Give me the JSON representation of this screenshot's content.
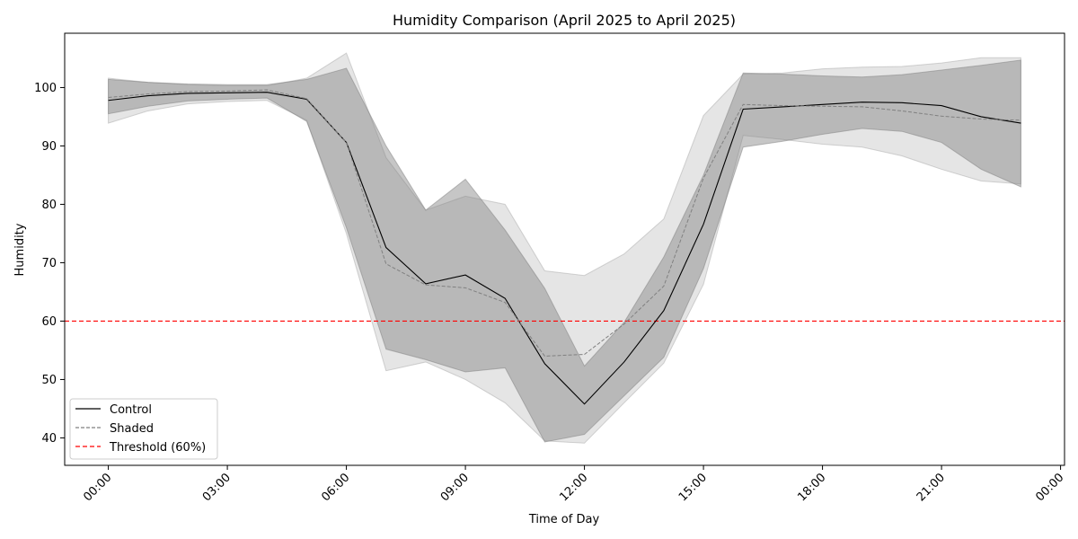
{
  "chart_data": {
    "type": "line",
    "title": "Humidity Comparison (April 2025 to April 2025)",
    "xlabel": "Time of Day",
    "ylabel": "Humidity",
    "x": [
      0,
      1,
      2,
      3,
      4,
      5,
      6,
      7,
      8,
      9,
      10,
      11,
      12,
      13,
      14,
      15,
      16,
      17,
      18,
      19,
      20,
      21,
      22,
      23
    ],
    "xlim": [
      -1.1,
      24.1
    ],
    "ylim": [
      35.3,
      109.3
    ],
    "x_ticks": [
      0,
      3,
      6,
      9,
      12,
      15,
      18,
      21,
      24
    ],
    "x_tick_labels": [
      "00:00",
      "03:00",
      "06:00",
      "09:00",
      "12:00",
      "15:00",
      "18:00",
      "21:00",
      "00:00"
    ],
    "y_ticks": [
      40,
      50,
      60,
      70,
      80,
      90,
      100
    ],
    "y_tick_labels": [
      "40",
      "50",
      "60",
      "70",
      "80",
      "90",
      "100"
    ],
    "grid": false,
    "legend_position": "lower-left",
    "series": [
      {
        "name": "Control",
        "color": "#000000",
        "style": "solid",
        "values": [
          97.8,
          98.6,
          99.0,
          99.1,
          99.2,
          98.0,
          90.6,
          72.6,
          66.4,
          67.9,
          63.9,
          52.7,
          45.8,
          53.0,
          61.8,
          76.6,
          96.3,
          96.7,
          97.1,
          97.5,
          97.4,
          96.9,
          95.0,
          93.9
        ],
        "band_low": [
          95.5,
          96.8,
          97.7,
          98.0,
          98.2,
          94.2,
          76.0,
          55.2,
          53.4,
          51.3,
          52.0,
          39.3,
          40.6,
          47.2,
          53.8,
          69.0,
          89.8,
          90.8,
          92.0,
          93.0,
          92.5,
          90.6,
          86.0,
          83.0
        ],
        "band_high": [
          101.4,
          100.9,
          100.6,
          100.5,
          100.5,
          101.4,
          103.3,
          90.0,
          79.0,
          84.3,
          75.6,
          65.6,
          52.3,
          59.8,
          71.0,
          85.0,
          102.5,
          102.3,
          102.0,
          101.8,
          102.2,
          103.0,
          103.8,
          104.7
        ]
      },
      {
        "name": "Shaded",
        "color": "#808080",
        "style": "dashed",
        "values": [
          98.3,
          98.9,
          99.3,
          99.4,
          99.6,
          98.1,
          90.6,
          69.8,
          66.2,
          65.7,
          63.2,
          54.0,
          54.3,
          59.5,
          66.0,
          84.5,
          97.1,
          96.9,
          96.8,
          96.7,
          96.0,
          95.1,
          94.6,
          94.4
        ],
        "band_low": [
          93.9,
          96.0,
          97.2,
          97.6,
          97.8,
          94.4,
          75.0,
          51.5,
          53.0,
          50.0,
          46.0,
          39.5,
          39.1,
          46.0,
          52.8,
          66.3,
          91.8,
          91.1,
          90.3,
          89.8,
          88.3,
          86.0,
          84.0,
          83.5
        ],
        "band_high": [
          101.6,
          100.9,
          100.5,
          100.3,
          100.3,
          101.6,
          105.9,
          88.0,
          79.0,
          81.4,
          80.0,
          68.6,
          67.8,
          71.5,
          77.5,
          95.2,
          102.3,
          102.5,
          103.2,
          103.5,
          103.6,
          104.2,
          105.1,
          105.1
        ]
      }
    ],
    "reference_lines": [
      {
        "name": "Threshold (60%)",
        "y": 60,
        "color": "#ff0000",
        "style": "dashed"
      }
    ]
  }
}
